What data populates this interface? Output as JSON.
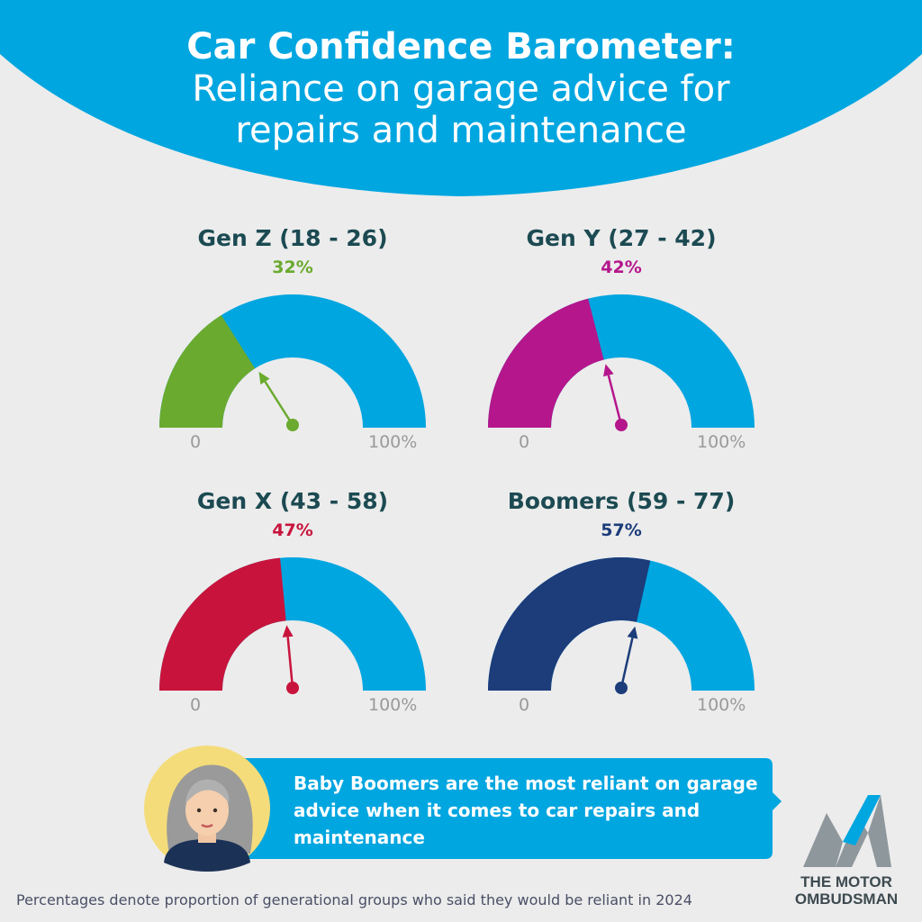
{
  "header": {
    "title_line1": "Car Confidence Barometer:",
    "title_line2": "Reliance on garage advice for",
    "title_line3": "repairs and maintenance"
  },
  "colors": {
    "header_blue": "#00a6e0",
    "gauge_track": "#00a6e0",
    "label_text": "#1c4a52",
    "tick_text": "#9a9a9a"
  },
  "chart_data": [
    {
      "type": "gauge",
      "title": "Gen Z (18 - 26)",
      "value": 32,
      "value_label": "32%",
      "range": [
        0,
        100
      ],
      "min_label": "0",
      "max_label": "100%",
      "color": "#6aaa2e"
    },
    {
      "type": "gauge",
      "title": "Gen Y (27 - 42)",
      "value": 42,
      "value_label": "42%",
      "range": [
        0,
        100
      ],
      "min_label": "0",
      "max_label": "100%",
      "color": "#b5168c"
    },
    {
      "type": "gauge",
      "title": "Gen X (43 - 58)",
      "value": 47,
      "value_label": "47%",
      "range": [
        0,
        100
      ],
      "min_label": "0",
      "max_label": "100%",
      "color": "#c8143c"
    },
    {
      "type": "gauge",
      "title": "Boomers (59 - 77)",
      "value": 57,
      "value_label": "57%",
      "range": [
        0,
        100
      ],
      "min_label": "0",
      "max_label": "100%",
      "color": "#1c3c7a"
    }
  ],
  "callout": {
    "text": "Baby Boomers are the most reliant on garage advice when it comes to car repairs and maintenance"
  },
  "logo": {
    "line1": "THE MOTOR",
    "line2": "OMBUDSMAN"
  },
  "footnote": "Percentages denote proportion of generational groups who said they would be reliant in 2024"
}
